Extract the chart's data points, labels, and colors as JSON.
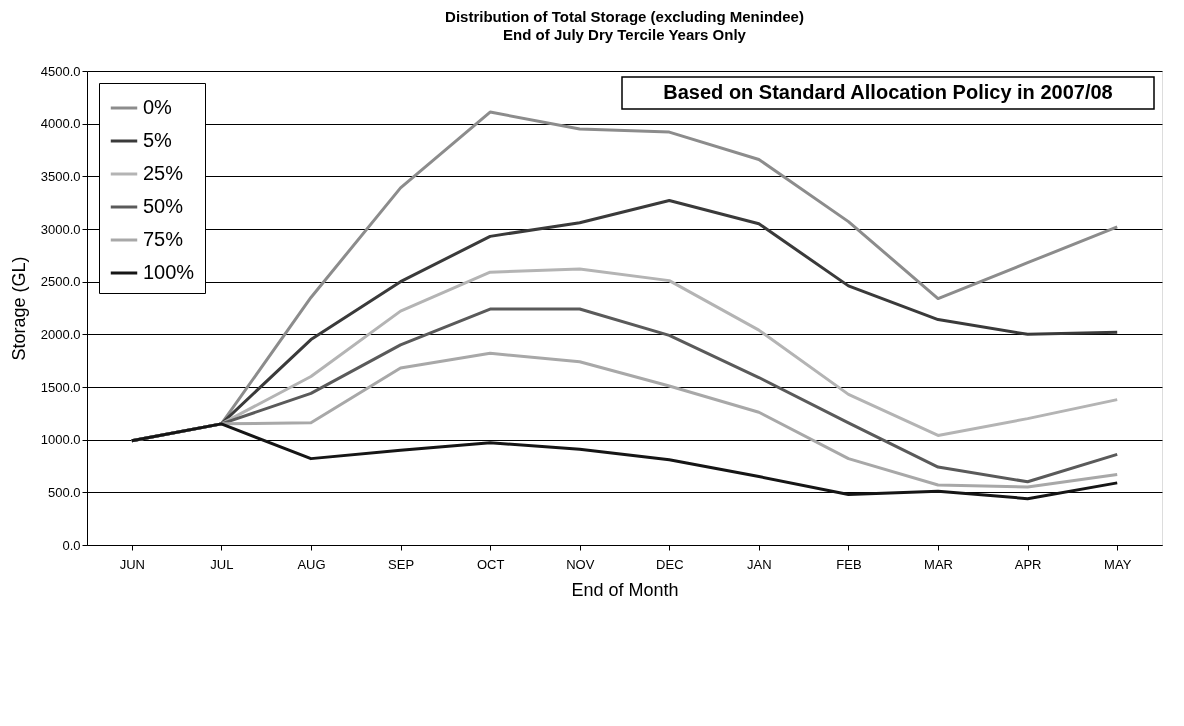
{
  "chart_data": {
    "type": "line",
    "title": "Distribution of Total Storage (excluding Menindee)",
    "subtitle": "End of July Dry Tercile Years Only",
    "xlabel": "End of Month",
    "ylabel": "Storage (GL)",
    "categories": [
      "JUN",
      "JUL",
      "AUG",
      "SEP",
      "OCT",
      "NOV",
      "DEC",
      "JAN",
      "FEB",
      "MAR",
      "APR",
      "MAY"
    ],
    "series": [
      {
        "name": "0%",
        "color": "#8c8c8c",
        "values": [
          990,
          1150,
          2350,
          3390,
          4110,
          3950,
          3920,
          3660,
          3070,
          2340,
          2680,
          3020
        ]
      },
      {
        "name": "5%",
        "color": "#3a3a3a",
        "values": [
          990,
          1150,
          1950,
          2500,
          2930,
          3060,
          3270,
          3050,
          2460,
          2140,
          2000,
          2020
        ]
      },
      {
        "name": "25%",
        "color": "#b4b4b4",
        "values": [
          990,
          1150,
          1600,
          2220,
          2590,
          2620,
          2510,
          2040,
          1430,
          1040,
          1200,
          1380
        ]
      },
      {
        "name": "50%",
        "color": "#5a5a5a",
        "values": [
          990,
          1150,
          1440,
          1900,
          2240,
          2240,
          1990,
          1590,
          1160,
          740,
          600,
          860
        ]
      },
      {
        "name": "75%",
        "color": "#a8a8a8",
        "values": [
          990,
          1150,
          1160,
          1680,
          1820,
          1740,
          1510,
          1260,
          820,
          570,
          550,
          670
        ]
      },
      {
        "name": "100%",
        "color": "#151515",
        "values": [
          990,
          1150,
          820,
          900,
          970,
          910,
          810,
          650,
          480,
          510,
          440,
          590
        ]
      }
    ],
    "ylim": [
      0,
      4500
    ],
    "yticks": [
      {
        "value": 0,
        "label": "0.0"
      },
      {
        "value": 500,
        "label": "500.0"
      },
      {
        "value": 1000,
        "label": "1000.0"
      },
      {
        "value": 1500,
        "label": "1500.0"
      },
      {
        "value": 2000,
        "label": "2000.0"
      },
      {
        "value": 2500,
        "label": "2500.0"
      },
      {
        "value": 3000,
        "label": "3000.0"
      },
      {
        "value": 3500,
        "label": "3500.0"
      },
      {
        "value": 4000,
        "label": "4000.0"
      },
      {
        "value": 4500,
        "label": "4500.0"
      }
    ],
    "annotations": [
      "Based on Standard Allocation Policy in 2007/08"
    ],
    "grid": "y",
    "legend": "top left",
    "marker": "none",
    "line_style": "solid"
  }
}
